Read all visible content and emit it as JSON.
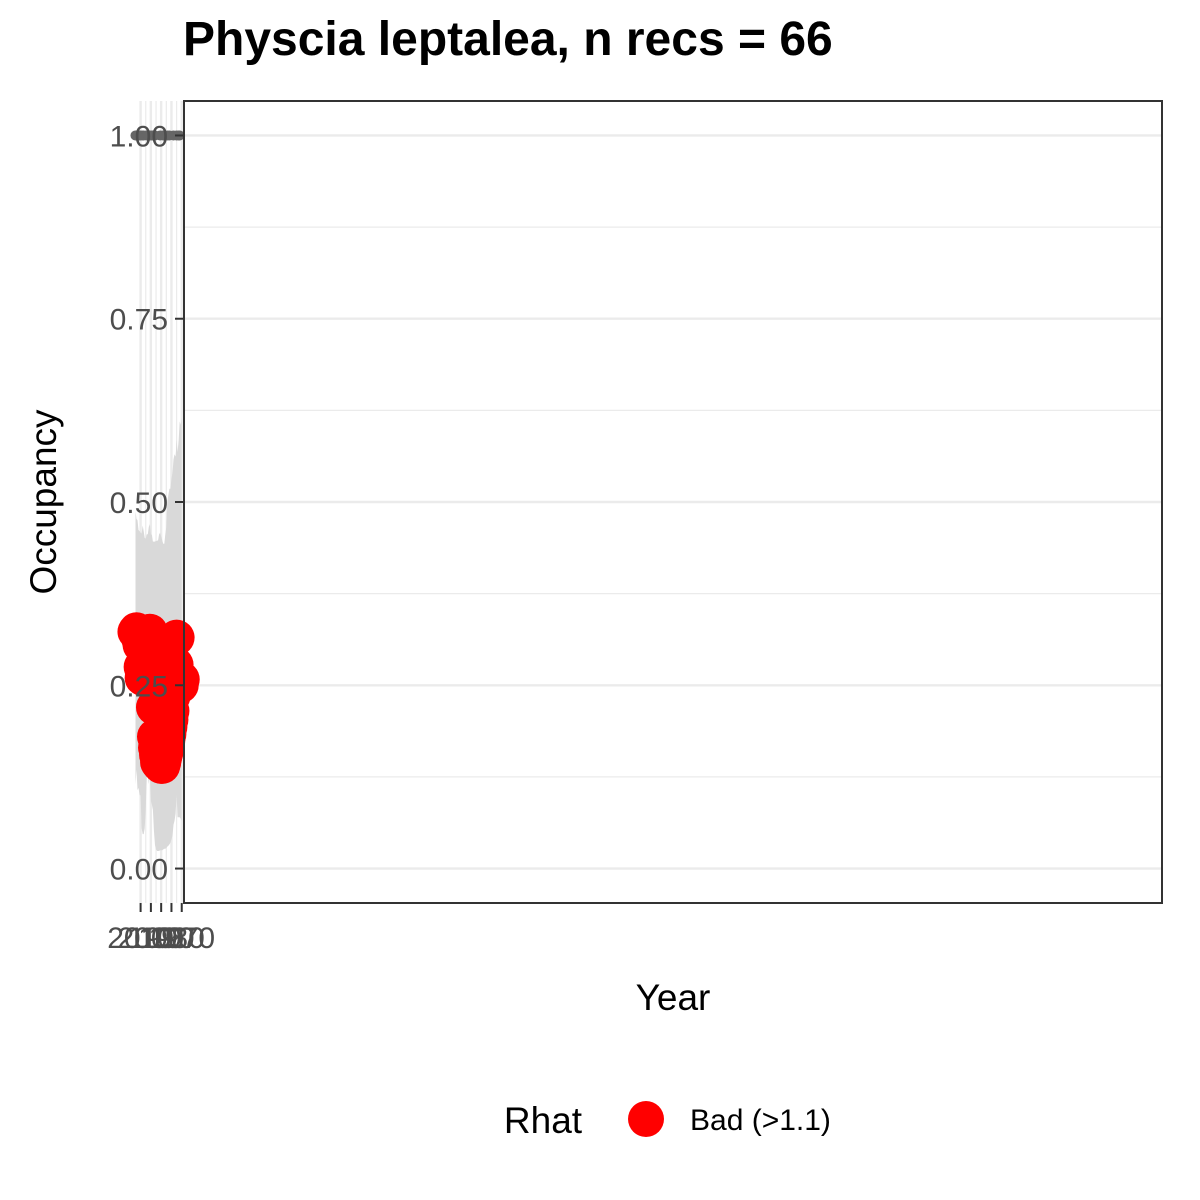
{
  "chart_data": {
    "type": "line",
    "title": "Physcia leptalea, n recs = 66",
    "xlabel": "Year",
    "ylabel": "Occupancy",
    "xlim": [
      1967.8,
      1016.9
    ],
    "ylim": [
      -0.047,
      1.047
    ],
    "x_ticks": [
      1970,
      1980,
      1990,
      2000,
      2010
    ],
    "x_tick_labels": [
      "1970",
      "1980",
      "1990",
      "2000",
      "2010"
    ],
    "y_ticks": [
      0,
      0.25,
      0.5,
      0.75,
      1.0
    ],
    "y_tick_labels": [
      "0.00",
      "0.25",
      "0.50",
      "0.75",
      "1.00"
    ],
    "grid": true,
    "legend": {
      "title": "Rhat",
      "position": "bottom",
      "entries": [
        {
          "label": "Bad (>1.1)",
          "color": "#ff0000"
        }
      ]
    },
    "colors": {
      "points": "#ff0000",
      "line": "#000000",
      "ribbon": "#d9d9d9",
      "records": "#666666",
      "panel_border": "#333333",
      "grid": "#ebebeb"
    },
    "series": [
      {
        "x": [
          1970,
          1971,
          1972,
          1973,
          1974,
          1975,
          1976,
          1977,
          1978,
          1979,
          1980,
          1981,
          1982,
          1983,
          1984,
          1985,
          1986,
          1987,
          1988,
          1989,
          1990,
          1991,
          1992,
          1993,
          1994,
          1995,
          1996,
          1997,
          1998,
          1999,
          2000,
          2001,
          2002,
          2003,
          2004,
          2005,
          2006,
          2007,
          2008,
          2009,
          2010,
          2011,
          2012,
          2013,
          2014,
          2015
        ],
        "y": [
          0.258,
          0.25,
          0.26,
          0.258,
          0.265,
          0.315,
          0.278,
          0.272,
          0.272,
          0.235,
          0.215,
          0.203,
          0.193,
          0.183,
          0.175,
          0.165,
          0.158,
          0.152,
          0.145,
          0.14,
          0.14,
          0.143,
          0.143,
          0.145,
          0.155,
          0.165,
          0.18,
          0.22,
          0.275,
          0.29,
          0.3,
          0.323,
          0.315,
          0.315,
          0.31,
          0.295,
          0.275,
          0.26,
          0.26,
          0.275,
          0.305,
          0.312,
          0.318,
          0.32,
          0.325,
          0.323
        ],
        "lower": [
          0.065,
          0.068,
          0.07,
          0.07,
          0.07,
          0.1,
          0.075,
          0.065,
          0.06,
          0.045,
          0.04,
          0.035,
          0.033,
          0.031,
          0.03,
          0.028,
          0.027,
          0.027,
          0.026,
          0.025,
          0.025,
          0.025,
          0.024,
          0.024,
          0.024,
          0.026,
          0.032,
          0.05,
          0.08,
          0.087,
          0.092,
          0.13,
          0.115,
          0.128,
          0.125,
          0.08,
          0.055,
          0.047,
          0.047,
          0.055,
          0.1,
          0.1,
          0.11,
          0.107,
          0.135,
          0.115
        ],
        "upper": [
          0.615,
          0.605,
          0.61,
          0.585,
          0.568,
          0.585,
          0.562,
          0.565,
          0.558,
          0.54,
          0.532,
          0.518,
          0.518,
          0.51,
          0.5,
          0.466,
          0.456,
          0.443,
          0.443,
          0.448,
          0.453,
          0.458,
          0.456,
          0.448,
          0.447,
          0.447,
          0.446,
          0.446,
          0.446,
          0.455,
          0.456,
          0.47,
          0.466,
          0.456,
          0.456,
          0.45,
          0.451,
          0.46,
          0.468,
          0.457,
          0.458,
          0.46,
          0.462,
          0.475,
          0.477,
          0.487
        ]
      },
      {
        "name": "records",
        "x": [
          1972,
          1973,
          1975,
          1978,
          1982,
          1984,
          1987,
          1988,
          1991,
          1996,
          1998,
          1999,
          2001,
          2002,
          2003,
          2004,
          2007,
          2008,
          2010,
          2011,
          2012,
          2013,
          2014,
          2015
        ],
        "y": [
          1,
          1,
          1,
          1,
          1,
          1,
          1,
          1,
          1,
          1,
          1,
          1,
          1,
          1,
          1,
          1,
          1,
          1,
          1,
          1,
          1,
          1,
          1,
          1
        ]
      }
    ]
  }
}
